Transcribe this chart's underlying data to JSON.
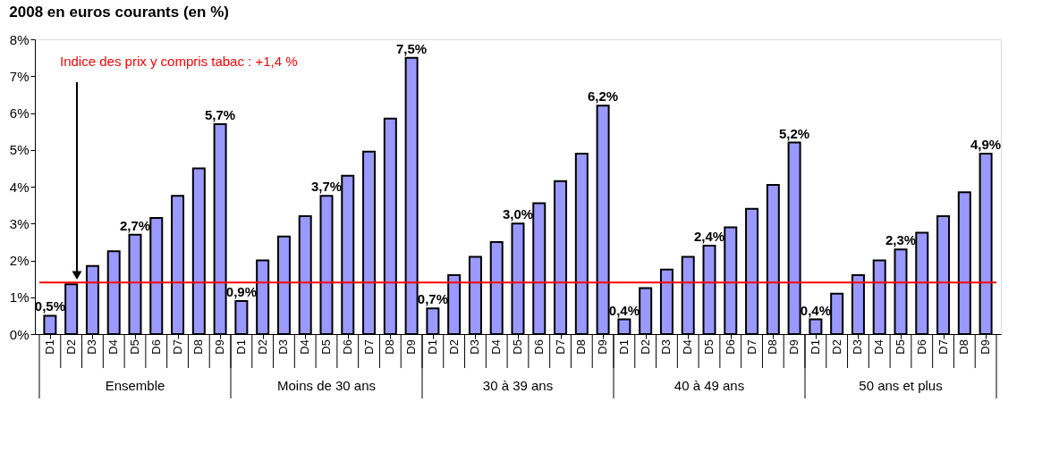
{
  "chart_data": {
    "type": "bar",
    "title": "2008 en euros courants (en %)",
    "categories": [
      "D1",
      "D2",
      "D3",
      "D4",
      "D5",
      "D6",
      "D7",
      "D8",
      "D9",
      "D1",
      "D2",
      "D3",
      "D4",
      "D5",
      "D6",
      "D7",
      "D8",
      "D9",
      "D1",
      "D2",
      "D3",
      "D4",
      "D5",
      "D6",
      "D7",
      "D8",
      "D9",
      "D1",
      "D2",
      "D3",
      "D4",
      "D5",
      "D6",
      "D7",
      "D8",
      "D9",
      "D1",
      "D2",
      "D3",
      "D4",
      "D5",
      "D6",
      "D7",
      "D8",
      "D9"
    ],
    "series": [
      {
        "color": "#9999ff",
        "values": [
          0.5,
          1.35,
          1.85,
          2.25,
          2.7,
          3.15,
          3.75,
          4.5,
          5.7,
          0.9,
          2.0,
          2.65,
          3.2,
          3.75,
          4.3,
          4.95,
          5.85,
          7.5,
          0.7,
          1.6,
          2.1,
          2.5,
          3.0,
          3.55,
          4.15,
          4.9,
          6.2,
          0.4,
          1.25,
          1.75,
          2.1,
          2.4,
          2.9,
          3.4,
          4.05,
          5.2,
          0.4,
          1.1,
          1.6,
          2.0,
          2.3,
          2.75,
          3.2,
          3.85,
          4.9
        ],
        "value_labels": [
          "0,5%",
          null,
          null,
          null,
          "2,7%",
          null,
          null,
          null,
          "5,7%",
          "0,9%",
          null,
          null,
          null,
          "3,7%",
          null,
          null,
          null,
          "7,5%",
          "0,7%",
          null,
          null,
          null,
          "3,0%",
          null,
          null,
          null,
          "6,2%",
          "0,4%",
          null,
          null,
          null,
          "2,4%",
          null,
          null,
          null,
          "5,2%",
          "0,4%",
          null,
          null,
          null,
          "2,3%",
          null,
          null,
          null,
          "4,9%"
        ]
      }
    ],
    "ylim": [
      0,
      8
    ],
    "yticks": [
      {
        "value": 0,
        "label": "0%"
      },
      {
        "value": 1,
        "label": "1%"
      },
      {
        "value": 2,
        "label": "2%"
      },
      {
        "value": 3,
        "label": "3%"
      },
      {
        "value": 4,
        "label": "4%"
      },
      {
        "value": 5,
        "label": "5%"
      },
      {
        "value": 6,
        "label": "6%"
      },
      {
        "value": 7,
        "label": "7%"
      },
      {
        "value": 8,
        "label": "8%"
      }
    ],
    "ref_lines": [
      {
        "axis": "y",
        "value": 1.4,
        "label": "Indice des prix y compris tabac : +1,4 %",
        "color": "#ff0000"
      }
    ],
    "annotations": [
      "Ensemble",
      "Moins de 30 ans",
      "30 à 39 ans",
      "40 à 49 ans",
      "50 ans et plus"
    ],
    "grid": false
  }
}
